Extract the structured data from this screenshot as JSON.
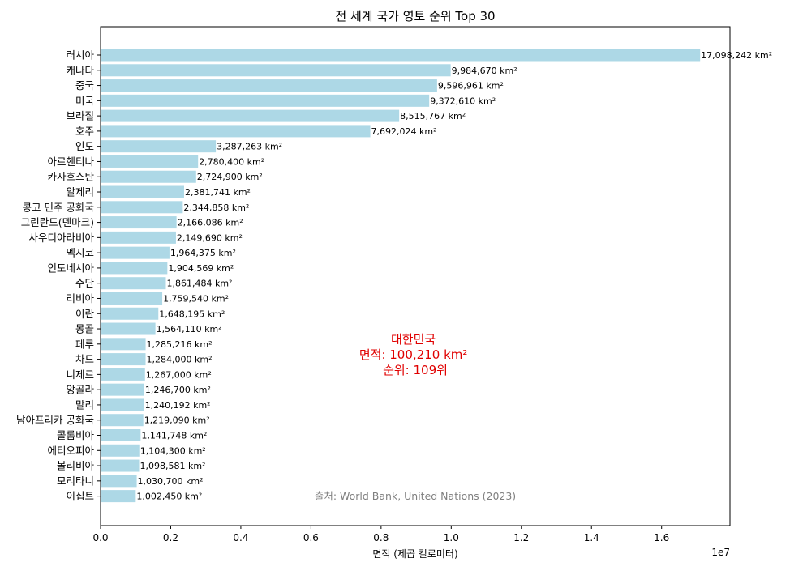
{
  "chart_data": {
    "type": "bar",
    "orientation": "horizontal",
    "title": "전 세계 국가 영토 순위 Top 30",
    "xlabel": "면적 (제곱 킬로미터)",
    "x_scale_label": "1e7",
    "xlim": [
      0,
      17950000
    ],
    "xticks": [
      0,
      2000000,
      4000000,
      6000000,
      8000000,
      10000000,
      12000000,
      14000000,
      16000000
    ],
    "xtick_labels": [
      "0.0",
      "0.2",
      "0.4",
      "0.6",
      "0.8",
      "1.0",
      "1.2",
      "1.4",
      "1.6"
    ],
    "grid": false,
    "bar_color": "#add8e6",
    "categories": [
      "러시아",
      "캐나다",
      "중국",
      "미국",
      "브라질",
      "호주",
      "인도",
      "아르헨티나",
      "카자흐스탄",
      "알제리",
      "콩고 민주 공화국",
      "그린란드(덴마크)",
      "사우디아라비아",
      "멕시코",
      "인도네시아",
      "수단",
      "리비아",
      "이란",
      "몽골",
      "페루",
      "차드",
      "니제르",
      "앙골라",
      "말리",
      "남아프리카 공화국",
      "콜롬비아",
      "에티오피아",
      "볼리비아",
      "모리타니",
      "이집트"
    ],
    "values": [
      17098242,
      9984670,
      9596961,
      9372610,
      8515767,
      7692024,
      3287263,
      2780400,
      2724900,
      2381741,
      2344858,
      2166086,
      2149690,
      1964375,
      1904569,
      1861484,
      1759540,
      1648195,
      1564110,
      1285216,
      1284000,
      1267000,
      1246700,
      1240192,
      1219090,
      1141748,
      1104300,
      1098581,
      1030700,
      1002450
    ],
    "value_labels": [
      "17,098,242 km²",
      "9,984,670 km²",
      "9,596,961 km²",
      "9,372,610 km²",
      "8,515,767 km²",
      "7,692,024 km²",
      "3,287,263 km²",
      "2,780,400 km²",
      "2,724,900 km²",
      "2,381,741 km²",
      "2,344,858 km²",
      "2,166,086 km²",
      "2,149,690 km²",
      "1,964,375 km²",
      "1,904,569 km²",
      "1,861,484 km²",
      "1,759,540 km²",
      "1,648,195 km²",
      "1,564,110 km²",
      "1,285,216 km²",
      "1,284,000 km²",
      "1,267,000 km²",
      "1,246,700 km²",
      "1,240,192 km²",
      "1,219,090 km²",
      "1,141,748 km²",
      "1,104,300 km²",
      "1,098,581 km²",
      "1,030,700 km²",
      "1,002,450 km²"
    ],
    "annotation": {
      "lines": [
        "대한민국",
        "면적: 100,210 km²",
        "순위: 109위"
      ],
      "color": "#e00000"
    },
    "source_note": "출처: World Bank, United Nations (2023)"
  }
}
